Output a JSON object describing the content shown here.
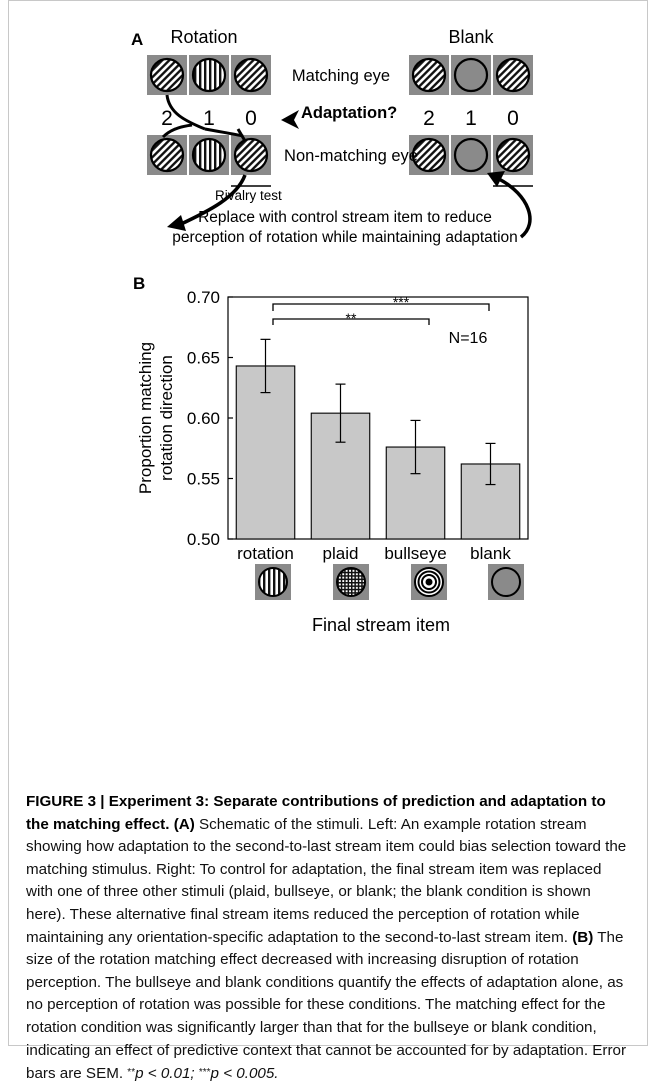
{
  "panel_a": {
    "letter": "A",
    "rotation_title": "Rotation",
    "blank_title": "Blank",
    "matching_eye": "Matching eye",
    "non_matching_eye": "Non-matching eye",
    "adaptation": "Adaptation?",
    "positions": [
      "2",
      "1",
      "0"
    ],
    "rivalry_test": "Rivalry test",
    "replace_line1": "Replace with control stream item to reduce",
    "replace_line2": "perception of rotation while maintaining adaptation"
  },
  "panel_b": {
    "letter": "B",
    "n_label": "N=16",
    "ylabel_line1": "Proportion matching",
    "ylabel_line2": "rotation direction",
    "xlabel": "Final stream item",
    "sig_inner": "**",
    "sig_outer": "***"
  },
  "chart_data": {
    "type": "bar",
    "categories": [
      "rotation",
      "plaid",
      "bullseye",
      "blank"
    ],
    "values": [
      0.643,
      0.604,
      0.576,
      0.562
    ],
    "errors": [
      0.022,
      0.024,
      0.022,
      0.017
    ],
    "ylim": [
      0.5,
      0.7
    ],
    "yticks": [
      "0.50",
      "0.55",
      "0.60",
      "0.65",
      "0.70"
    ],
    "ylabel": "Proportion matching rotation direction",
    "xlabel": "Final stream item",
    "bar_color": "#c8c8c8"
  },
  "caption": {
    "title": "FIGURE 3 | Experiment 3: Separate contributions of prediction and adaptation to the matching effect.",
    "label_a": "(A)",
    "text_a": " Schematic of the stimuli. Left: An example rotation stream showing how adaptation to the second-to-last stream item could bias selection toward the matching stimulus. Right: To control for adaptation, the final stream item was replaced with one of three other stimuli (plaid, bullseye, or blank; the blank condition is shown here). These alternative final stream items reduced the perception of rotation while maintaining any orientation-specific adaptation to the second-to-last stream item. ",
    "label_b": "(B)",
    "text_b": " The size of the rotation matching effect decreased with increasing disruption of rotation perception. The bullseye and blank conditions quantify the effects of adaptation alone, as no perception of rotation was possible for these conditions. The matching effect for the rotation condition was significantly larger than that for the bullseye or blank condition, indicating an effect of predictive context that cannot be accounted for by adaptation. Error bars are SEM. ",
    "p1_stars": "**",
    "p1_text": "p < 0.01; ",
    "p2_stars": "***",
    "p2_text": "p < 0.005."
  }
}
